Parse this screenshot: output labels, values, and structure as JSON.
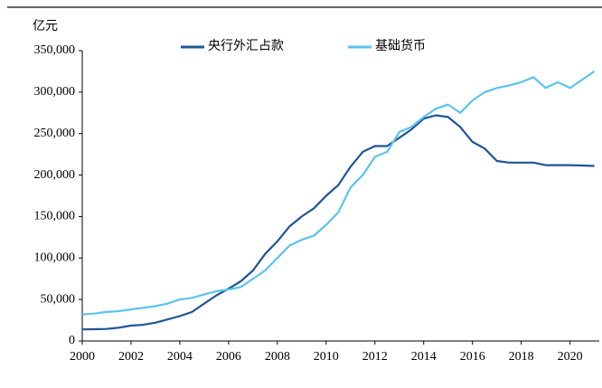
{
  "chart_data": {
    "type": "line",
    "unit_label": "亿元",
    "x": [
      2000,
      2000.5,
      2001,
      2001.5,
      2002,
      2002.5,
      2003,
      2003.5,
      2004,
      2004.5,
      2005,
      2005.5,
      2006,
      2006.5,
      2007,
      2007.5,
      2008,
      2008.5,
      2009,
      2009.5,
      2010,
      2010.5,
      2011,
      2011.5,
      2012,
      2012.5,
      2013,
      2013.5,
      2014,
      2014.5,
      2015,
      2015.5,
      2016,
      2016.5,
      2017,
      2017.5,
      2018,
      2018.5,
      2019,
      2019.5,
      2020,
      2020.5,
      2021
    ],
    "series": [
      {
        "name": "央行外汇占款",
        "color": "#1f5596",
        "values": [
          14000,
          14200,
          14500,
          16000,
          18500,
          19500,
          22000,
          26000,
          30000,
          35000,
          45000,
          55000,
          63000,
          72000,
          85000,
          105000,
          120000,
          138000,
          150000,
          160000,
          175000,
          188000,
          210000,
          228000,
          235000,
          235000,
          245000,
          255000,
          268000,
          272000,
          270000,
          258000,
          240000,
          232000,
          217000,
          215000,
          215000,
          215000,
          212000,
          212000,
          212000,
          211500,
          211000
        ]
      },
      {
        "name": "基础货币",
        "color": "#5bc3ee",
        "values": [
          32000,
          33000,
          35000,
          36000,
          38000,
          40000,
          42000,
          45000,
          50000,
          52000,
          56000,
          60000,
          62000,
          65000,
          75000,
          85000,
          100000,
          115000,
          122000,
          127000,
          140000,
          155000,
          185000,
          200000,
          222000,
          228000,
          252000,
          258000,
          270000,
          280000,
          285000,
          275000,
          290000,
          300000,
          305000,
          308000,
          312000,
          318000,
          305000,
          312000,
          305000,
          315000,
          325000
        ]
      }
    ],
    "xlim": [
      2000,
      2021.2
    ],
    "xticks": [
      2000,
      2002,
      2004,
      2006,
      2008,
      2010,
      2012,
      2014,
      2016,
      2018,
      2020
    ],
    "ylim": [
      0,
      350000
    ],
    "yticks": [
      0,
      {
        "value": 50000,
        "label": "50,000"
      },
      {
        "value": 100000,
        "label": "100,000"
      },
      {
        "value": 150000,
        "label": "150,000"
      },
      {
        "value": 200000,
        "label": "200,000"
      },
      {
        "value": 250000,
        "label": "250,000"
      },
      {
        "value": 300000,
        "label": "300,000"
      },
      {
        "value": 350000,
        "label": "350,000"
      }
    ],
    "grid": false
  }
}
